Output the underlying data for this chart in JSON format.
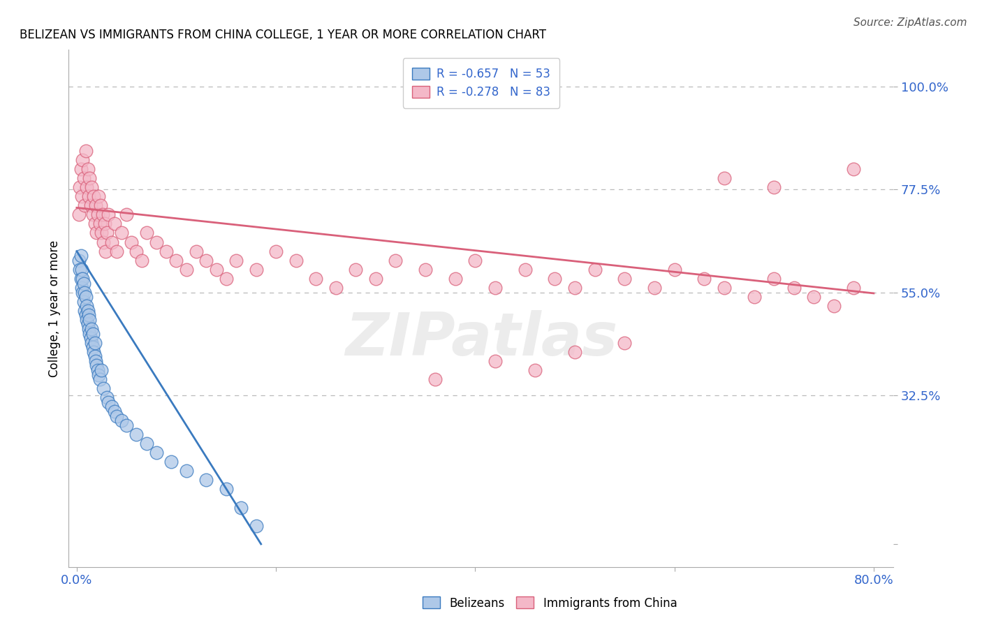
{
  "title": "BELIZEAN VS IMMIGRANTS FROM CHINA COLLEGE, 1 YEAR OR MORE CORRELATION CHART",
  "source": "Source: ZipAtlas.com",
  "ylabel": "College, 1 year or more",
  "watermark": "ZIPatlas",
  "legend_blue_label": "Belizeans",
  "legend_pink_label": "Immigrants from China",
  "R_blue": -0.657,
  "N_blue": 53,
  "R_pink": -0.278,
  "N_pink": 83,
  "blue_fill": "#aec8e8",
  "blue_edge": "#3a7abf",
  "pink_fill": "#f4b8c8",
  "pink_edge": "#d9607a",
  "blue_line_color": "#3a7abf",
  "pink_line_color": "#d9607a",
  "tick_label_color": "#3366cc",
  "xlim": [
    -0.008,
    0.82
  ],
  "ylim": [
    -0.05,
    1.08
  ],
  "blue_x": [
    0.002,
    0.003,
    0.004,
    0.004,
    0.005,
    0.005,
    0.006,
    0.006,
    0.007,
    0.007,
    0.008,
    0.008,
    0.009,
    0.009,
    0.01,
    0.01,
    0.011,
    0.011,
    0.012,
    0.012,
    0.013,
    0.013,
    0.014,
    0.015,
    0.015,
    0.016,
    0.016,
    0.017,
    0.018,
    0.018,
    0.019,
    0.02,
    0.021,
    0.022,
    0.023,
    0.025,
    0.027,
    0.03,
    0.032,
    0.035,
    0.038,
    0.04,
    0.045,
    0.05,
    0.06,
    0.07,
    0.08,
    0.095,
    0.11,
    0.13,
    0.15,
    0.165,
    0.18
  ],
  "blue_y": [
    0.62,
    0.6,
    0.58,
    0.63,
    0.56,
    0.6,
    0.55,
    0.58,
    0.53,
    0.57,
    0.51,
    0.55,
    0.5,
    0.54,
    0.49,
    0.52,
    0.48,
    0.51,
    0.47,
    0.5,
    0.46,
    0.49,
    0.45,
    0.44,
    0.47,
    0.43,
    0.46,
    0.42,
    0.41,
    0.44,
    0.4,
    0.39,
    0.38,
    0.37,
    0.36,
    0.38,
    0.34,
    0.32,
    0.31,
    0.3,
    0.29,
    0.28,
    0.27,
    0.26,
    0.24,
    0.22,
    0.2,
    0.18,
    0.16,
    0.14,
    0.12,
    0.08,
    0.04
  ],
  "pink_x": [
    0.002,
    0.003,
    0.004,
    0.005,
    0.006,
    0.007,
    0.008,
    0.009,
    0.01,
    0.011,
    0.012,
    0.013,
    0.014,
    0.015,
    0.016,
    0.017,
    0.018,
    0.019,
    0.02,
    0.021,
    0.022,
    0.023,
    0.024,
    0.025,
    0.026,
    0.027,
    0.028,
    0.029,
    0.03,
    0.032,
    0.035,
    0.038,
    0.04,
    0.045,
    0.05,
    0.055,
    0.06,
    0.065,
    0.07,
    0.08,
    0.09,
    0.1,
    0.11,
    0.12,
    0.13,
    0.14,
    0.15,
    0.16,
    0.18,
    0.2,
    0.22,
    0.24,
    0.26,
    0.28,
    0.3,
    0.32,
    0.35,
    0.38,
    0.4,
    0.42,
    0.45,
    0.48,
    0.5,
    0.52,
    0.55,
    0.58,
    0.6,
    0.63,
    0.65,
    0.68,
    0.7,
    0.72,
    0.74,
    0.76,
    0.78,
    0.5,
    0.55,
    0.42,
    0.46,
    0.36,
    0.65,
    0.7,
    0.78
  ],
  "pink_y": [
    0.72,
    0.78,
    0.82,
    0.76,
    0.84,
    0.8,
    0.74,
    0.86,
    0.78,
    0.82,
    0.76,
    0.8,
    0.74,
    0.78,
    0.72,
    0.76,
    0.7,
    0.74,
    0.68,
    0.72,
    0.76,
    0.7,
    0.74,
    0.68,
    0.72,
    0.66,
    0.7,
    0.64,
    0.68,
    0.72,
    0.66,
    0.7,
    0.64,
    0.68,
    0.72,
    0.66,
    0.64,
    0.62,
    0.68,
    0.66,
    0.64,
    0.62,
    0.6,
    0.64,
    0.62,
    0.6,
    0.58,
    0.62,
    0.6,
    0.64,
    0.62,
    0.58,
    0.56,
    0.6,
    0.58,
    0.62,
    0.6,
    0.58,
    0.62,
    0.56,
    0.6,
    0.58,
    0.56,
    0.6,
    0.58,
    0.56,
    0.6,
    0.58,
    0.56,
    0.54,
    0.58,
    0.56,
    0.54,
    0.52,
    0.56,
    0.42,
    0.44,
    0.4,
    0.38,
    0.36,
    0.8,
    0.78,
    0.82
  ],
  "blue_line_x": [
    0.0,
    0.185
  ],
  "blue_line_y": [
    0.64,
    0.0
  ],
  "pink_line_x": [
    0.0,
    0.8
  ],
  "pink_line_y": [
    0.735,
    0.548
  ]
}
